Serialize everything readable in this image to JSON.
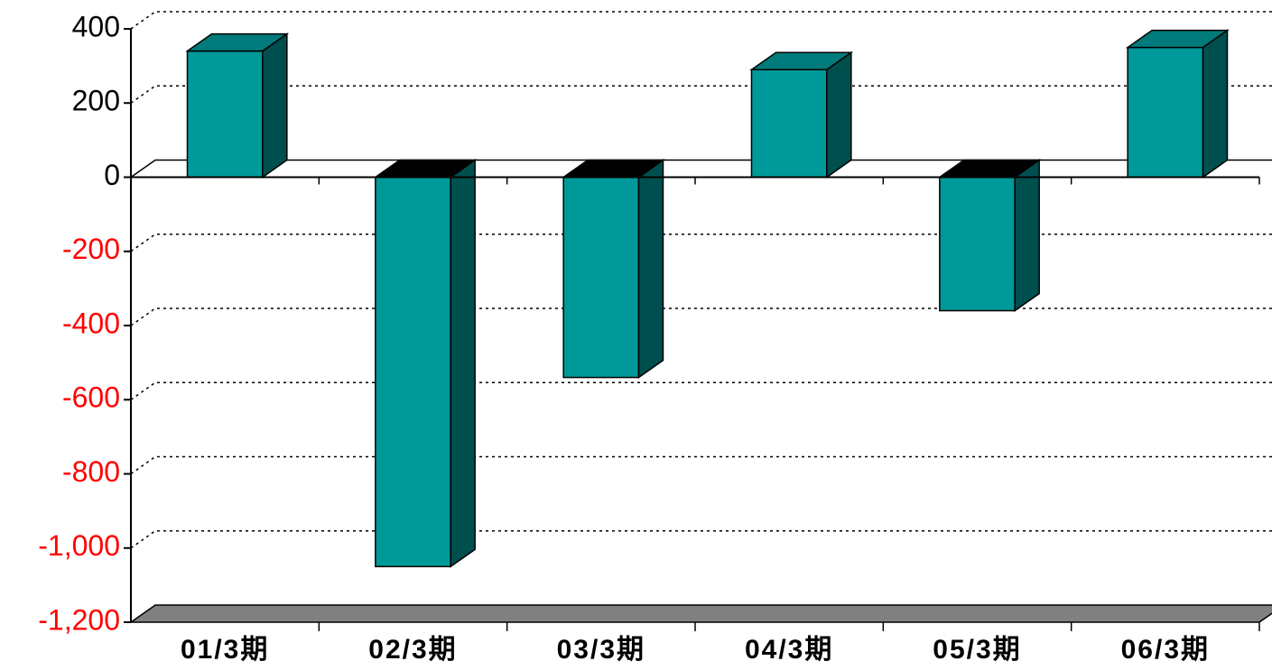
{
  "chart_data": {
    "type": "bar3d",
    "categories": [
      "01/3期",
      "02/3期",
      "03/3期",
      "04/3期",
      "05/3期",
      "06/3期"
    ],
    "values": [
      340,
      -1050,
      -540,
      290,
      -360,
      350
    ],
    "color": "#009999",
    "ylim": [
      -1200,
      400
    ],
    "yticks": [
      {
        "value": -1200,
        "label": "-1,200"
      },
      {
        "value": -1000,
        "label": "-1,000"
      },
      -800,
      -600,
      -400,
      -200,
      0,
      200,
      400
    ],
    "negative_tick_color": "#ff0000",
    "grid": true
  }
}
